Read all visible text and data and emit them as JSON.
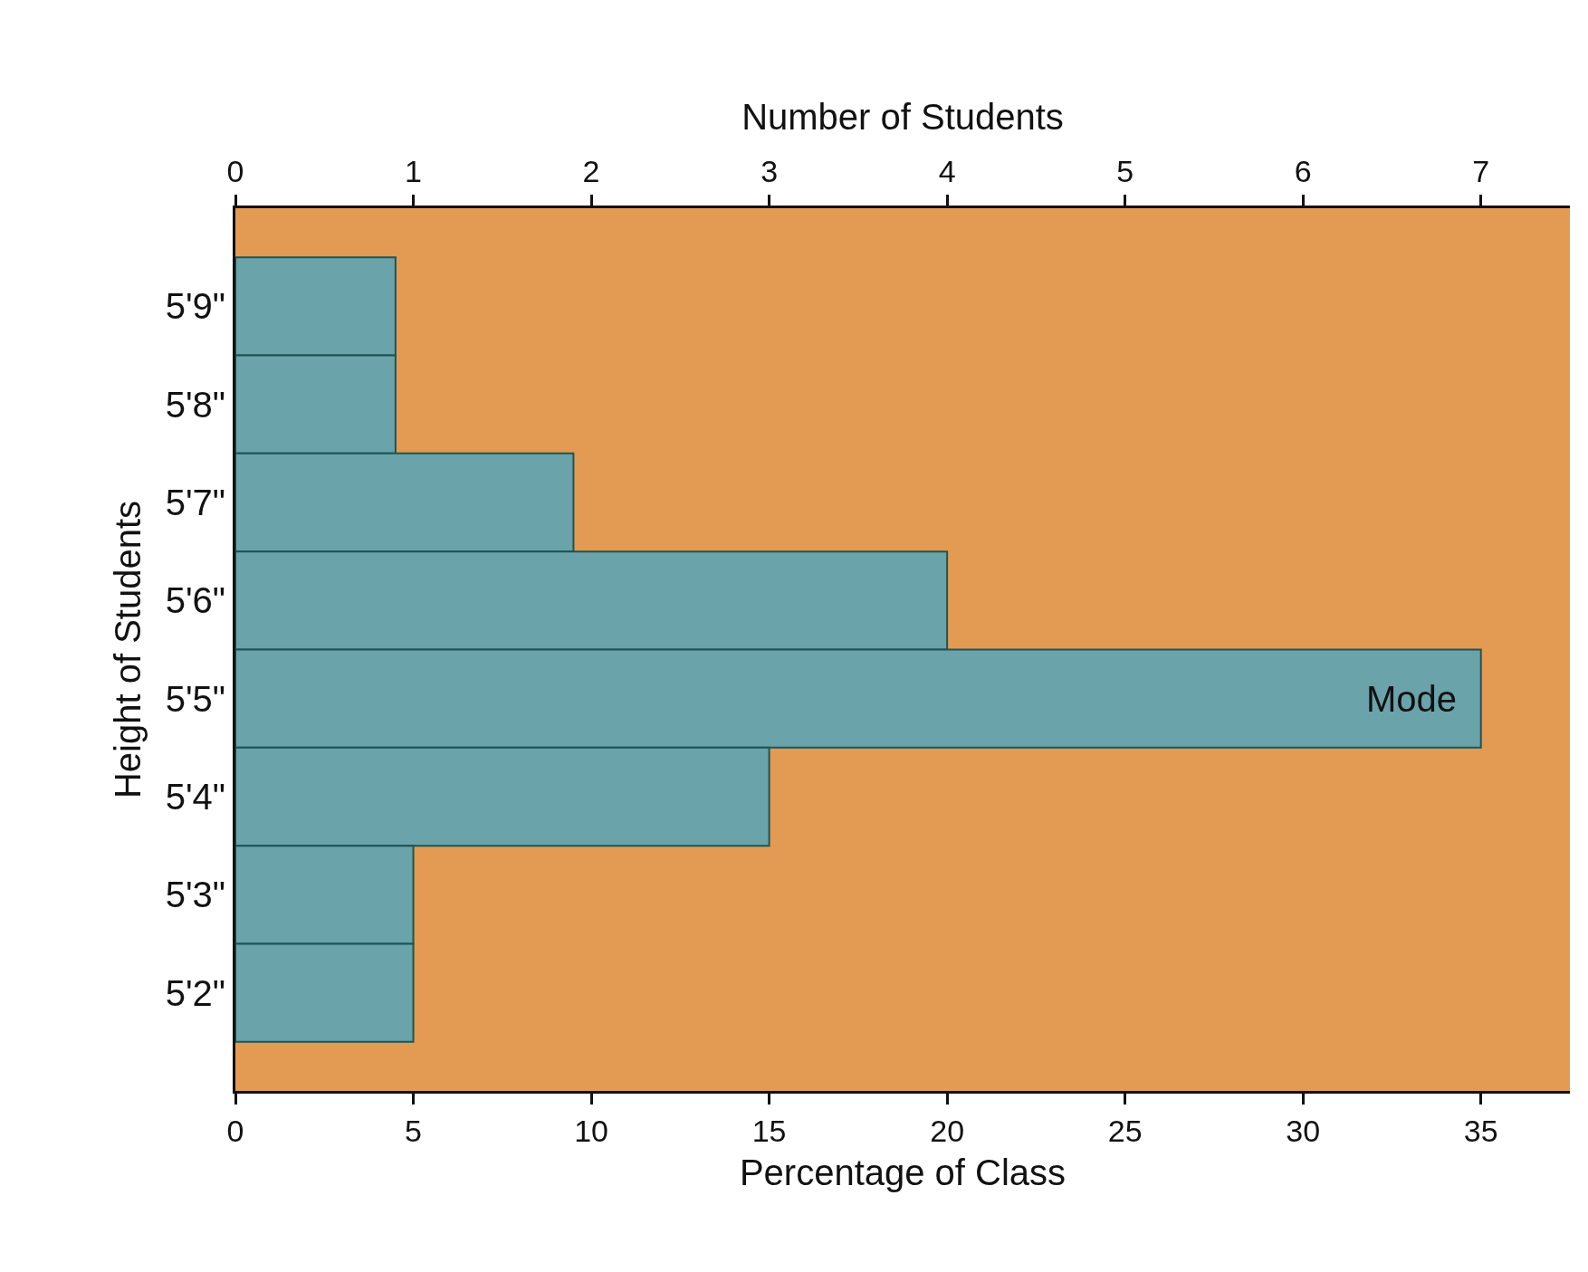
{
  "chart_data": {
    "type": "bar",
    "orientation": "horizontal",
    "xlabel": "Percentage of Class",
    "x2label": "Number of Students",
    "ylabel": "Height of Students",
    "categories": [
      "5'9\"",
      "5'8\"",
      "5'7\"",
      "5'6\"",
      "5'5\"",
      "5'4\"",
      "5'3\"",
      "5'2\""
    ],
    "values": [
      4.5,
      4.5,
      9.5,
      20,
      35,
      15,
      5,
      5
    ],
    "color": "#6aa3aa",
    "xlim": [
      0,
      37.5
    ],
    "xticks": [
      0,
      5,
      10,
      15,
      20,
      25,
      30,
      35
    ],
    "x2lim": [
      0,
      7.5
    ],
    "x2ticks": [
      0,
      1,
      2,
      3,
      4,
      5,
      6,
      7
    ],
    "annotations": [
      {
        "text": "Mode",
        "x": 35,
        "y": "5'5\""
      }
    ],
    "grid": false,
    "legend": false
  }
}
